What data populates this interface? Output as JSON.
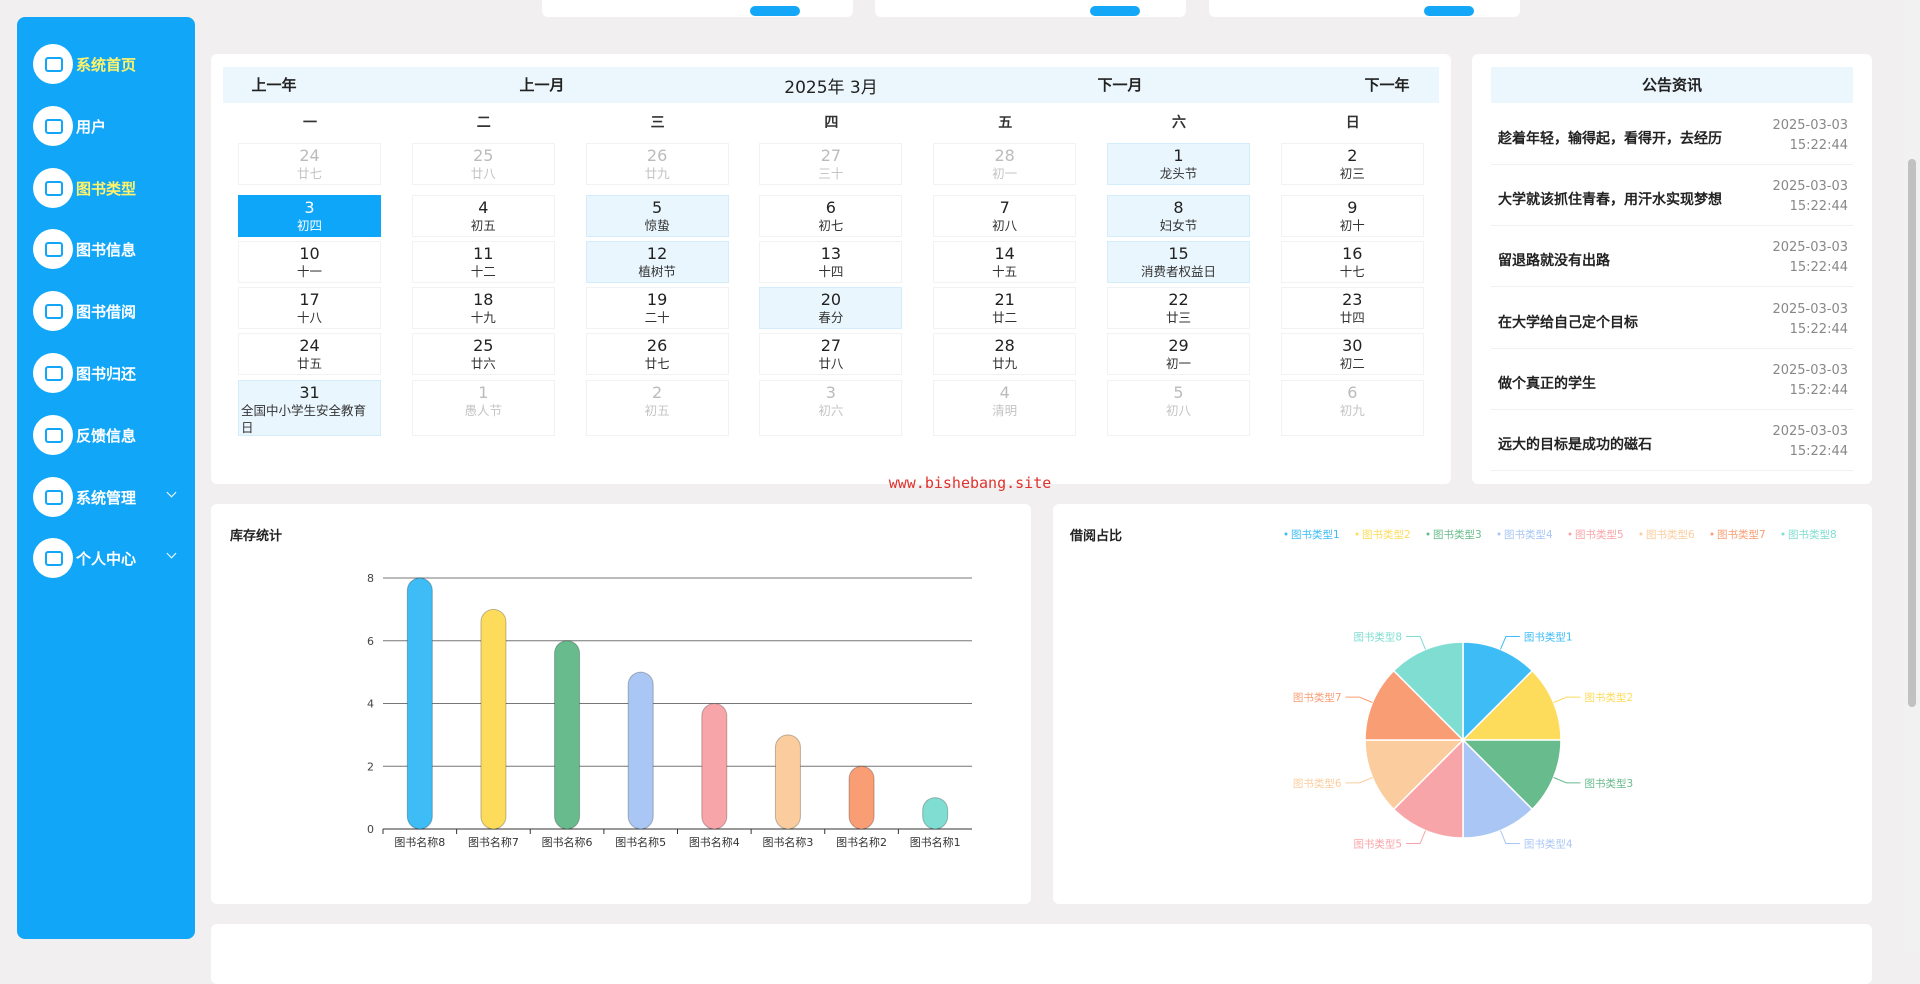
{
  "sidebar": {
    "menu": [
      {
        "label": "系统首页",
        "highlight": true
      },
      {
        "label": "用户"
      },
      {
        "label": "图书类型",
        "highlight": true
      },
      {
        "label": "图书信息"
      },
      {
        "label": "图书借阅"
      },
      {
        "label": "图书归还"
      },
      {
        "label": "反馈信息"
      },
      {
        "label": "系统管理",
        "expandable": true
      },
      {
        "label": "个人中心",
        "expandable": true
      }
    ]
  },
  "calendar": {
    "nav": [
      "上一年",
      "上一月",
      "下一月",
      "下一年"
    ],
    "title": "2025年 3月",
    "weekdays": [
      "一",
      "二",
      "三",
      "四",
      "五",
      "六",
      "日"
    ],
    "rows": [
      [
        {
          "day": 24,
          "sub": "廿七",
          "muted": true
        },
        {
          "day": 25,
          "sub": "廿八",
          "muted": true
        },
        {
          "day": 26,
          "sub": "廿九",
          "muted": true
        },
        {
          "day": 27,
          "sub": "三十",
          "muted": true
        },
        {
          "day": 28,
          "sub": "初一",
          "muted": true
        },
        {
          "day": 1,
          "sub": "龙头节",
          "highlight": true
        },
        {
          "day": 2,
          "sub": "初三"
        }
      ],
      [
        {
          "day": 3,
          "sub": "初四",
          "selected": true
        },
        {
          "day": 4,
          "sub": "初五"
        },
        {
          "day": 5,
          "sub": "惊蛰",
          "highlight": true
        },
        {
          "day": 6,
          "sub": "初七"
        },
        {
          "day": 7,
          "sub": "初八"
        },
        {
          "day": 8,
          "sub": "妇女节",
          "highlight": true
        },
        {
          "day": 9,
          "sub": "初十"
        }
      ],
      [
        {
          "day": 10,
          "sub": "十一"
        },
        {
          "day": 11,
          "sub": "十二"
        },
        {
          "day": 12,
          "sub": "植树节",
          "highlight": true
        },
        {
          "day": 13,
          "sub": "十四"
        },
        {
          "day": 14,
          "sub": "十五"
        },
        {
          "day": 15,
          "sub": "消费者权益日",
          "highlight": true
        },
        {
          "day": 16,
          "sub": "十七"
        }
      ],
      [
        {
          "day": 17,
          "sub": "十八"
        },
        {
          "day": 18,
          "sub": "十九"
        },
        {
          "day": 19,
          "sub": "二十"
        },
        {
          "day": 20,
          "sub": "春分",
          "highlight": true
        },
        {
          "day": 21,
          "sub": "廿二"
        },
        {
          "day": 22,
          "sub": "廿三"
        },
        {
          "day": 23,
          "sub": "廿四"
        }
      ],
      [
        {
          "day": 24,
          "sub": "廿五"
        },
        {
          "day": 25,
          "sub": "廿六"
        },
        {
          "day": 26,
          "sub": "廿七"
        },
        {
          "day": 27,
          "sub": "廿八"
        },
        {
          "day": 28,
          "sub": "廿九"
        },
        {
          "day": 29,
          "sub": "初一"
        },
        {
          "day": 30,
          "sub": "初二"
        }
      ],
      [
        {
          "day": 31,
          "sub": "全国中小学生安全教育日",
          "highlight": true
        },
        {
          "day": 1,
          "sub": "愚人节",
          "muted": true
        },
        {
          "day": 2,
          "sub": "初五",
          "muted": true
        },
        {
          "day": 3,
          "sub": "初六",
          "muted": true
        },
        {
          "day": 4,
          "sub": "清明",
          "muted": true
        },
        {
          "day": 5,
          "sub": "初八",
          "muted": true
        },
        {
          "day": 6,
          "sub": "初九",
          "muted": true
        }
      ]
    ]
  },
  "announcements": {
    "title": "公告资讯",
    "items": [
      {
        "title": "趁着年轻，输得起，看得开，去经历",
        "date": "2025-03-03",
        "time": "15:22:44"
      },
      {
        "title": "大学就该抓住青春，用汗水实现梦想",
        "date": "2025-03-03",
        "time": "15:22:44"
      },
      {
        "title": "留退路就没有出路",
        "date": "2025-03-03",
        "time": "15:22:44"
      },
      {
        "title": "在大学给自己定个目标",
        "date": "2025-03-03",
        "time": "15:22:44"
      },
      {
        "title": "做个真正的学生",
        "date": "2025-03-03",
        "time": "15:22:44"
      },
      {
        "title": "远大的目标是成功的磁石",
        "date": "2025-03-03",
        "time": "15:22:44"
      }
    ]
  },
  "watermark": "www.bishebang.site",
  "chart_data": [
    {
      "type": "bar",
      "title": "库存统计",
      "categories": [
        "图书名称8",
        "图书名称7",
        "图书名称6",
        "图书名称5",
        "图书名称4",
        "图书名称3",
        "图书名称2",
        "图书名称1"
      ],
      "values": [
        8,
        7,
        6,
        5,
        4,
        3,
        2,
        1
      ],
      "colors": [
        "#3dbcf6",
        "#fddc5c",
        "#68bb8c",
        "#a9c6f5",
        "#f8a5a9",
        "#fbcd9e",
        "#f99d74",
        "#80ddd2"
      ],
      "ylim": [
        0,
        8
      ],
      "yticks": [
        0,
        2,
        4,
        6,
        8
      ],
      "grid": true
    },
    {
      "type": "pie",
      "title": "借阅占比",
      "rose": true,
      "categories": [
        "图书类型1",
        "图书类型2",
        "图书类型3",
        "图书类型4",
        "图书类型5",
        "图书类型6",
        "图书类型7",
        "图书类型8"
      ],
      "values": [
        1,
        1,
        1,
        1,
        1,
        1,
        1,
        1
      ],
      "colors": [
        "#3dbcf6",
        "#fddc5c",
        "#68bb8c",
        "#a9c6f5",
        "#f8a5a9",
        "#fbcd9e",
        "#f99d74",
        "#80ddd2"
      ],
      "legend": "top-right"
    }
  ]
}
